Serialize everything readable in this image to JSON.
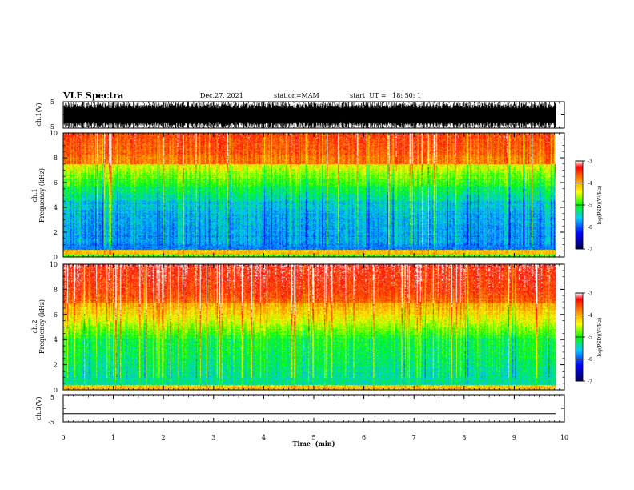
{
  "header": {
    "title": "VLF Spectra",
    "date": "Dec.27, 2021",
    "station": "station=MAM",
    "start": "start  UT =   18: 50: 1"
  },
  "chart_data": [
    {
      "type": "line",
      "name": "waveform-ch1",
      "ylabel": "ch.1(V)",
      "ylim": [
        -5,
        5
      ],
      "yticks": [
        "5",
        "-5"
      ],
      "xlim": [
        0,
        10
      ],
      "data_range": [
        0,
        9.83
      ]
    },
    {
      "type": "heatmap",
      "name": "spectrogram-ch1",
      "ylabel_line1": "ch.1",
      "ylabel_line2": "Frequency (kHz)",
      "ylim": [
        0,
        10
      ],
      "yticks": [
        "0",
        "2",
        "4",
        "6",
        "8",
        "10"
      ],
      "colorbar": {
        "ticks": [
          "-3",
          "-4",
          "-5",
          "-6",
          "-7"
        ],
        "range": [
          -7,
          -3
        ],
        "label": "log(PSD)(V²/Hz)"
      }
    },
    {
      "type": "heatmap",
      "name": "spectrogram-ch2",
      "ylabel_line1": "ch.2",
      "ylabel_line2": "Frequency (kHz)",
      "ylim": [
        0,
        10
      ],
      "yticks": [
        "0",
        "2",
        "4",
        "6",
        "8",
        "10"
      ],
      "colorbar": {
        "ticks": [
          "-3",
          "-4",
          "-5",
          "-6",
          "-7"
        ],
        "range": [
          -7,
          -3
        ],
        "label": "log(PSD)(V²/Hz)"
      }
    },
    {
      "type": "line",
      "name": "waveform-ch3",
      "ylabel": "ch.3(V)",
      "ylim": [
        -5,
        5
      ],
      "yticks": [
        "5",
        "-5"
      ],
      "values": [
        -2,
        -2
      ]
    }
  ],
  "xaxis": {
    "label": "Time  (min)",
    "ticks": [
      "0",
      "1",
      "2",
      "3",
      "4",
      "5",
      "6",
      "7",
      "8",
      "9",
      "10"
    ],
    "range": [
      0,
      10
    ]
  },
  "colors": {
    "colormap": [
      "#000060",
      "#0000ff",
      "#00ffff",
      "#00ff00",
      "#ffff00",
      "#ff8000",
      "#ff0000",
      "#ffffff"
    ]
  }
}
